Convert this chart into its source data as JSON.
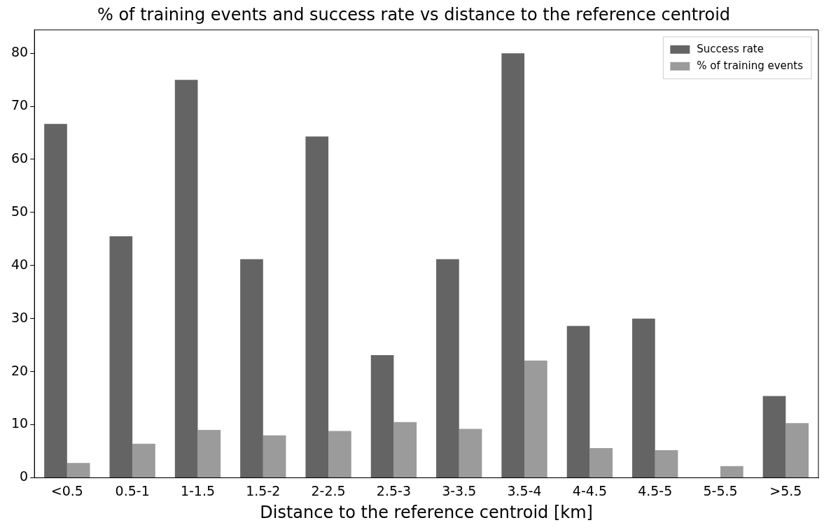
{
  "chart_data": {
    "type": "bar",
    "title": "% of training events and success rate vs distance to the reference centroid",
    "xlabel": "Distance to the reference centroid [km]",
    "categories": [
      "<0.5",
      "0.5-1",
      "1-1.5",
      "1.5-2",
      "2-2.5",
      "2.5-3",
      "3-3.5",
      "3.5-4",
      "4-4.5",
      "4.5-5",
      "5-5.5",
      ">5.5"
    ],
    "series": [
      {
        "name": "Success rate",
        "color": "#646464",
        "values": [
          66.7,
          45.5,
          75,
          41.2,
          64.3,
          23.1,
          41.2,
          80,
          28.6,
          30,
          0,
          15.4
        ]
      },
      {
        "name": "% of training events",
        "color": "#9b9b9b",
        "values": [
          2.8,
          6.4,
          9.0,
          8.0,
          8.8,
          10.5,
          9.2,
          22.1,
          5.6,
          5.2,
          2.2,
          10.3
        ]
      }
    ],
    "ylim": [
      0,
      84.4
    ],
    "yticks": [
      0,
      10,
      20,
      30,
      40,
      50,
      60,
      70,
      80
    ],
    "grid": false,
    "legend": "top right"
  }
}
